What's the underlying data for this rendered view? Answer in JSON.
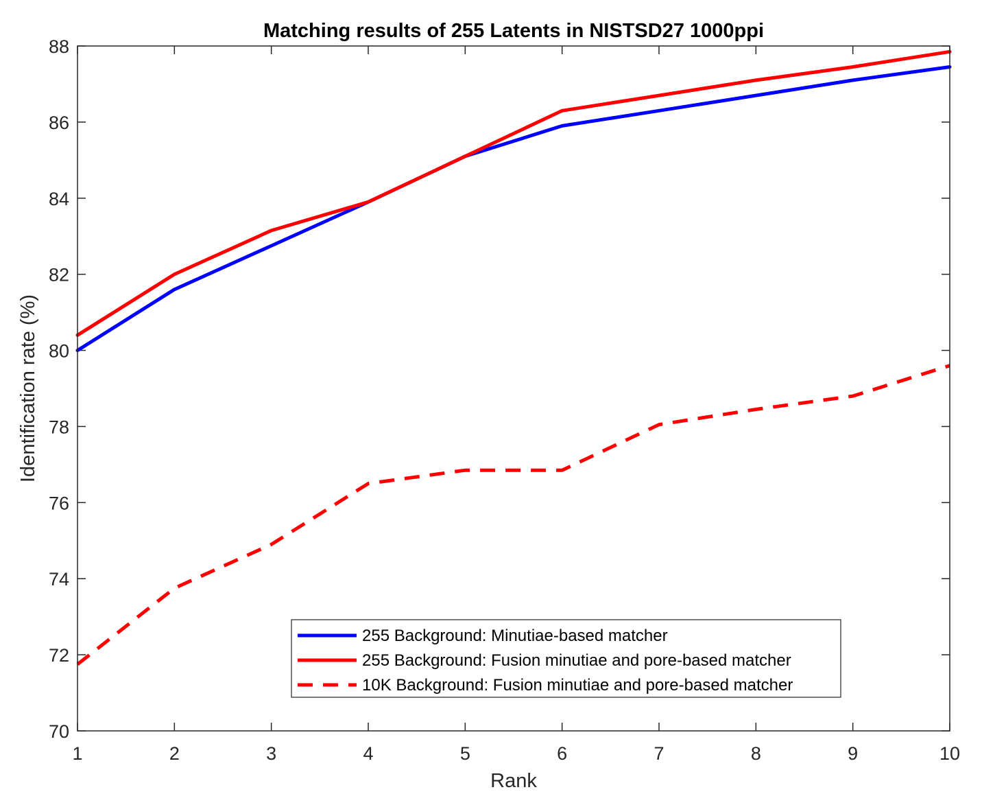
{
  "chart_data": {
    "type": "line",
    "title": "Matching results of 255 Latents in NISTSD27 1000ppi",
    "xlabel": "Rank",
    "ylabel": "Identification rate (%)",
    "xlim": [
      1,
      10
    ],
    "ylim": [
      70,
      88
    ],
    "x": [
      1,
      2,
      3,
      4,
      5,
      6,
      7,
      8,
      9,
      10
    ],
    "xticks": [
      "1",
      "2",
      "3",
      "4",
      "5",
      "6",
      "7",
      "8",
      "9",
      "10"
    ],
    "yticks": [
      "70",
      "72",
      "74",
      "76",
      "78",
      "80",
      "82",
      "84",
      "86",
      "88"
    ],
    "grid": false,
    "legend_position": "bottom-right",
    "series": [
      {
        "name": "255 Background: Minutiae-based matcher",
        "color": "#0000FF",
        "line_style": "solid",
        "values": [
          80.0,
          81.6,
          82.75,
          83.9,
          85.1,
          85.9,
          86.3,
          86.7,
          87.1,
          87.45
        ]
      },
      {
        "name": "255 Background: Fusion minutiae and pore-based matcher",
        "color": "#FF0000",
        "line_style": "solid",
        "values": [
          80.4,
          82.0,
          83.15,
          83.9,
          85.1,
          86.3,
          86.7,
          87.1,
          87.45,
          87.85
        ]
      },
      {
        "name": "10K Background: Fusion minutiae and pore-based matcher",
        "color": "#FF0000",
        "line_style": "dashed",
        "values": [
          71.75,
          73.75,
          74.9,
          76.5,
          76.85,
          76.85,
          78.05,
          78.45,
          78.8,
          79.6
        ]
      }
    ]
  }
}
